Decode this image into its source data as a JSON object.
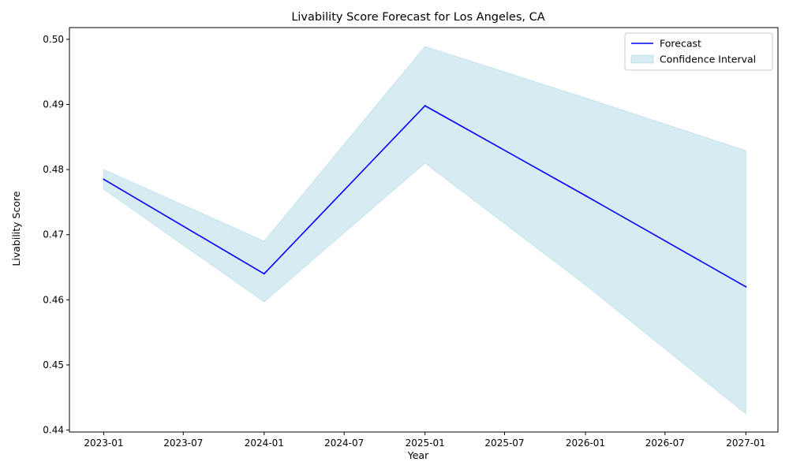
{
  "chart_data": {
    "type": "line",
    "title": "Livability Score Forecast for Los Angeles, CA",
    "xlabel": "Year",
    "ylabel": "Livability Score",
    "x": [
      "2023-01-01",
      "2024-01-01",
      "2025-01-01",
      "2026-01-01",
      "2027-01-01"
    ],
    "xlim": [
      "2022-10-15",
      "2027-03-15"
    ],
    "x_ticks": [
      "2023-01-01",
      "2023-07-01",
      "2024-01-01",
      "2024-07-01",
      "2025-01-01",
      "2025-07-01",
      "2026-01-01",
      "2026-07-01",
      "2027-01-01"
    ],
    "x_tick_labels": [
      "2023-01",
      "2023-07",
      "2024-01",
      "2024-07",
      "2025-01",
      "2025-07",
      "2026-01",
      "2026-07",
      "2027-01"
    ],
    "ylim": [
      0.4397,
      0.5018
    ],
    "y_ticks": [
      0.44,
      0.45,
      0.46,
      0.47,
      0.48,
      0.49,
      0.5
    ],
    "y_tick_labels": [
      "0.44",
      "0.45",
      "0.46",
      "0.47",
      "0.48",
      "0.49",
      "0.50"
    ],
    "grid": false,
    "legend_position": "top-right",
    "series": [
      {
        "name": "Forecast",
        "type": "line",
        "color": "#0000ff",
        "values": [
          0.4785,
          0.464,
          0.4898,
          0.476,
          0.462
        ]
      }
    ],
    "band": {
      "name": "Confidence Interval",
      "color": "#add8e6",
      "opacity": 0.5,
      "lower": [
        0.477,
        0.4597,
        0.481,
        0.4623,
        0.4425
      ],
      "upper": [
        0.48,
        0.469,
        0.4989,
        0.491,
        0.4829
      ]
    },
    "legend": [
      {
        "label": "Forecast",
        "swatch": "line",
        "color": "#0000ff"
      },
      {
        "label": "Confidence Interval",
        "swatch": "patch",
        "color": "#add8e6"
      }
    ]
  }
}
